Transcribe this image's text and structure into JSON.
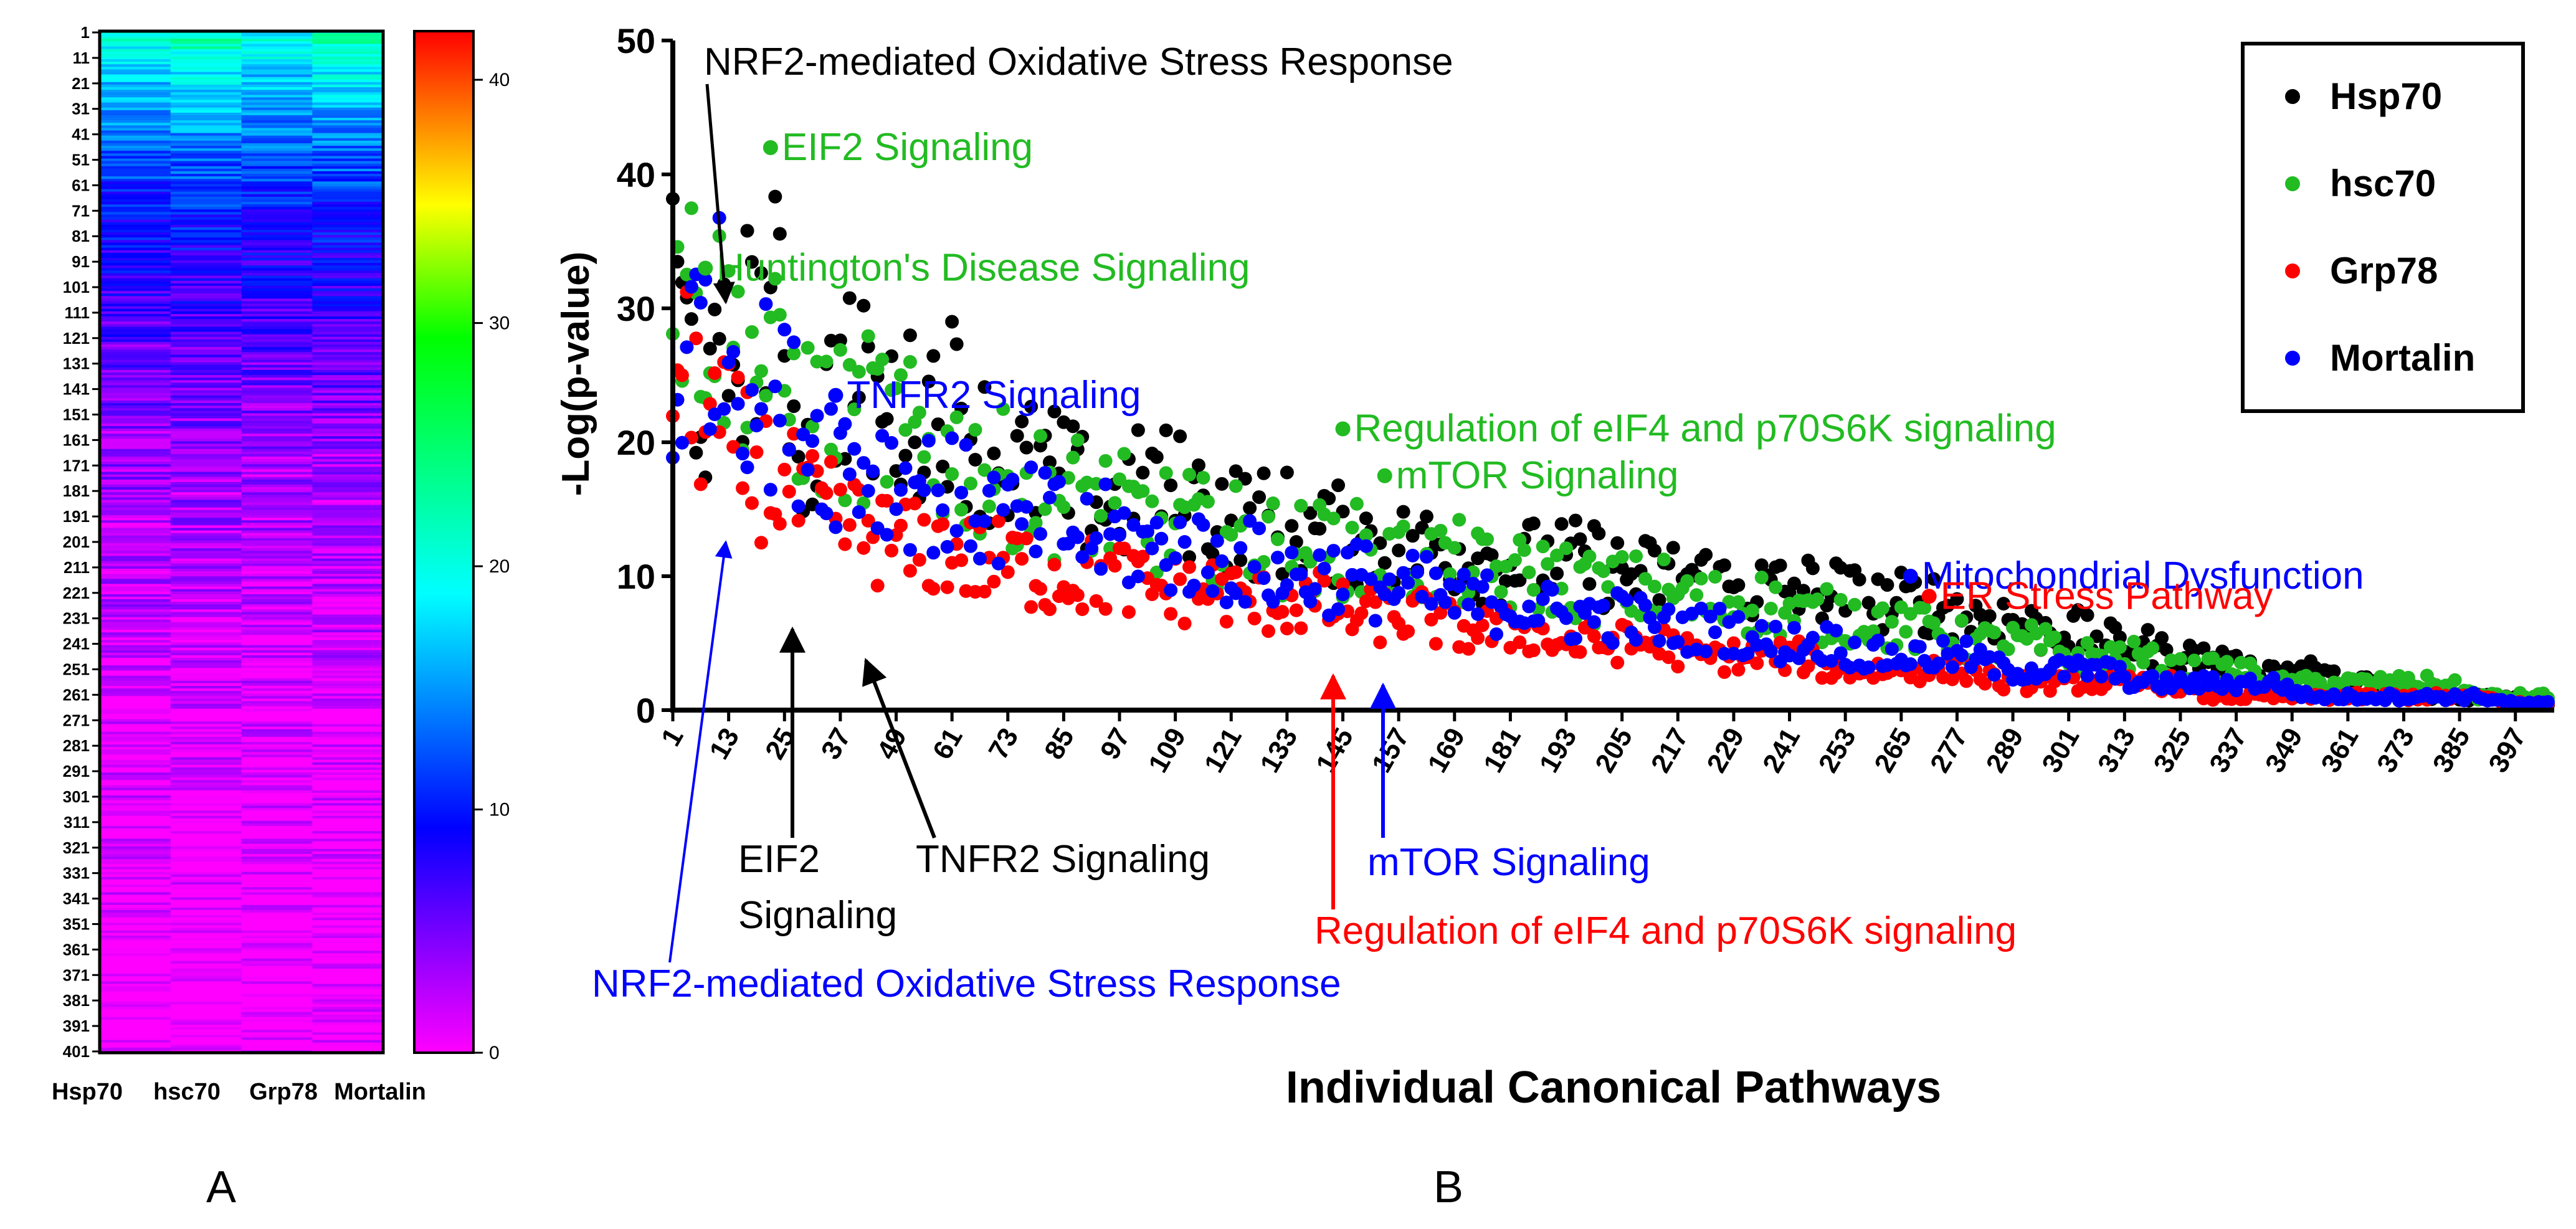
{
  "panels": {
    "a_label": "A",
    "b_label": "B"
  },
  "chart_data": [
    {
      "type": "heatmap",
      "columns": [
        "Hsp70",
        "hsc70",
        "Grp78",
        "Mortalin"
      ],
      "row_ticks": [
        "1",
        "11",
        "21",
        "31",
        "41",
        "51",
        "61",
        "71",
        "81",
        "91",
        "101",
        "111",
        "121",
        "131",
        "141",
        "151",
        "161",
        "171",
        "181",
        "191",
        "201",
        "211",
        "221",
        "231",
        "241",
        "251",
        "261",
        "271",
        "281",
        "291",
        "301",
        "311",
        "321",
        "331",
        "341",
        "351",
        "361",
        "371",
        "381",
        "391",
        "401"
      ],
      "n_rows": 401,
      "colorbar": {
        "min": 0,
        "max": 42,
        "ticks": [
          "0",
          "10",
          "20",
          "30",
          "40"
        ]
      },
      "colors": [
        "#ff00ff",
        "#0000ff",
        "#00ffff",
        "#00ff00",
        "#ffff00",
        "#ff0000"
      ]
    },
    {
      "type": "scatter",
      "ylabel": "-Log(p-value)",
      "xlabel": "Individual Canonical Pathways",
      "ylim": [
        0,
        50
      ],
      "xlim": [
        1,
        404
      ],
      "y_ticks": [
        "0",
        "10",
        "20",
        "30",
        "40",
        "50"
      ],
      "x_ticks": [
        "1",
        "13",
        "25",
        "37",
        "49",
        "61",
        "73",
        "85",
        "97",
        "109",
        "121",
        "133",
        "145",
        "157",
        "169",
        "181",
        "193",
        "205",
        "217",
        "229",
        "241",
        "253",
        "265",
        "277",
        "289",
        "301",
        "313",
        "325",
        "337",
        "349",
        "361",
        "373",
        "385",
        "397"
      ],
      "series": [
        {
          "name": "Hsp70",
          "color": "#000000",
          "values": [
            32,
            22,
            28,
            30,
            18,
            26,
            22,
            22,
            24,
            20,
            18,
            18,
            16,
            15,
            17,
            16,
            15,
            14,
            14,
            13,
            13,
            12,
            12,
            12,
            11,
            11,
            11,
            11,
            10,
            10,
            10,
            9,
            9,
            9,
            9,
            8,
            8,
            8,
            7,
            7,
            6,
            6,
            5,
            5,
            4,
            4,
            3,
            3,
            3,
            2,
            2,
            1,
            1,
            1,
            1,
            0.5
          ]
        },
        {
          "name": "hsc70",
          "color": "#22bb22",
          "values": [
            33,
            30,
            27,
            25,
            22,
            21,
            22,
            20,
            19,
            18,
            17,
            16,
            16,
            15,
            14,
            14,
            13,
            13,
            12,
            12,
            12,
            11,
            11,
            11,
            10,
            10,
            10,
            9,
            9,
            9,
            8,
            8,
            8,
            7,
            7,
            7,
            6,
            6,
            5,
            5,
            5,
            4,
            4,
            4,
            3,
            3,
            3,
            2,
            2,
            2,
            2,
            2,
            2,
            1,
            1,
            1
          ]
        },
        {
          "name": "Grp78",
          "color": "#ff0000",
          "values": [
            26,
            22,
            19,
            17,
            15,
            14,
            13,
            12,
            12,
            11,
            11,
            10,
            10,
            10,
            9,
            9,
            9,
            8,
            8,
            8,
            7,
            7,
            7,
            6,
            6,
            6,
            5,
            5,
            5,
            5,
            4,
            4,
            4,
            4,
            3,
            3,
            3,
            3,
            3,
            2,
            2,
            2,
            2,
            2,
            2,
            1,
            1,
            1,
            1,
            1,
            1,
            1,
            1,
            1,
            0.5,
            0.5
          ]
        },
        {
          "name": "Mortalin",
          "color": "#0000ff",
          "values": [
            23,
            30,
            26,
            23,
            21,
            19,
            18,
            17,
            16,
            15,
            14,
            14,
            13,
            13,
            12,
            12,
            11,
            11,
            10,
            10,
            10,
            9,
            9,
            8,
            8,
            8,
            7,
            7,
            7,
            6,
            6,
            6,
            5,
            5,
            5,
            4,
            4,
            4,
            4,
            3,
            3,
            3,
            3,
            2,
            2,
            2,
            2,
            2,
            1,
            1,
            1,
            1,
            1,
            1,
            0.5,
            0.5
          ]
        }
      ],
      "highlights": [
        {
          "text": "EIF2 Signaling",
          "x": 22,
          "y": 42,
          "color": "#22bb22"
        },
        {
          "text": "Huntington's Disease Signaling",
          "x": 8,
          "y": 33,
          "color": "#22bb22"
        },
        {
          "text": "TNFR2 Signaling",
          "x": 36,
          "y": 23.5,
          "color": "#0000ff"
        },
        {
          "text": "Regulation of eIF4 and p70S6K signaling",
          "x": 145,
          "y": 21,
          "color": "#22bb22"
        },
        {
          "text": "mTOR Signaling",
          "x": 154,
          "y": 17.5,
          "color": "#22bb22"
        },
        {
          "text": "Mitochondrial Dysfunction",
          "x": 267,
          "y": 10,
          "color": "#0000ff"
        },
        {
          "text": "ER Stress Pathway",
          "x": 271,
          "y": 8.5,
          "color": "#ff0000"
        }
      ],
      "callouts": [
        {
          "text": "NRF2-mediated Oxidative Stress Response",
          "color": "#000000"
        },
        {
          "text": "EIF2",
          "text2": "Signaling",
          "color": "#000000"
        },
        {
          "text": "TNFR2 Signaling",
          "color": "#000000"
        },
        {
          "text": "mTOR Signaling",
          "color": "#0000ff"
        },
        {
          "text": "Regulation of eIF4 and p70S6K signaling",
          "color": "#ff0000"
        },
        {
          "text": "NRF2-mediated Oxidative Stress Response",
          "color": "#0000ff"
        }
      ],
      "legend_placement": "top-right"
    }
  ]
}
